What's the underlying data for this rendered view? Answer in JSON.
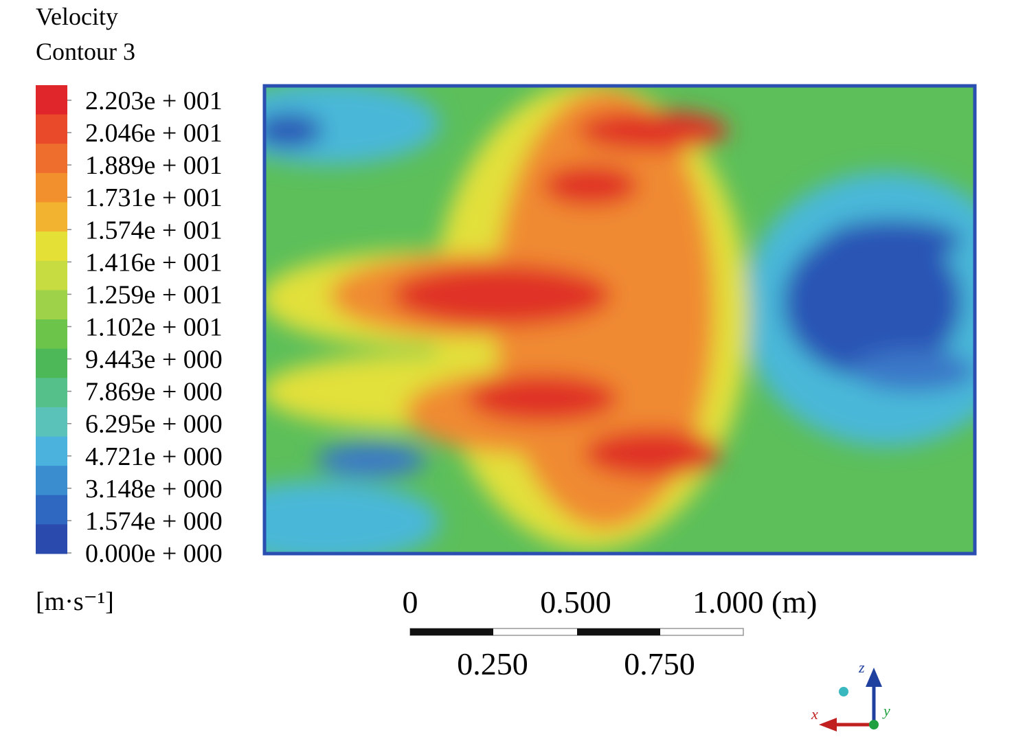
{
  "legend": {
    "title_lines": [
      "Velocity",
      "Contour 3"
    ],
    "labels": [
      "2.203e + 001",
      "2.046e + 001",
      "1.889e + 001",
      "1.731e + 001",
      "1.574e + 001",
      "1.416e + 001",
      "1.259e + 001",
      "1.102e + 001",
      "9.443e + 000",
      "7.869e + 000",
      "6.295e + 000",
      "4.721e + 000",
      "3.148e + 000",
      "1.574e + 000",
      "0.000e + 000"
    ],
    "unit": "[m·s⁻¹]"
  },
  "scale_bar": {
    "top_labels": [
      "0",
      "0.500",
      "1.000 (m)"
    ],
    "bottom_labels": [
      "0.250",
      "0.750"
    ]
  },
  "triad": {
    "x": "x",
    "y": "y",
    "z": "z"
  }
}
